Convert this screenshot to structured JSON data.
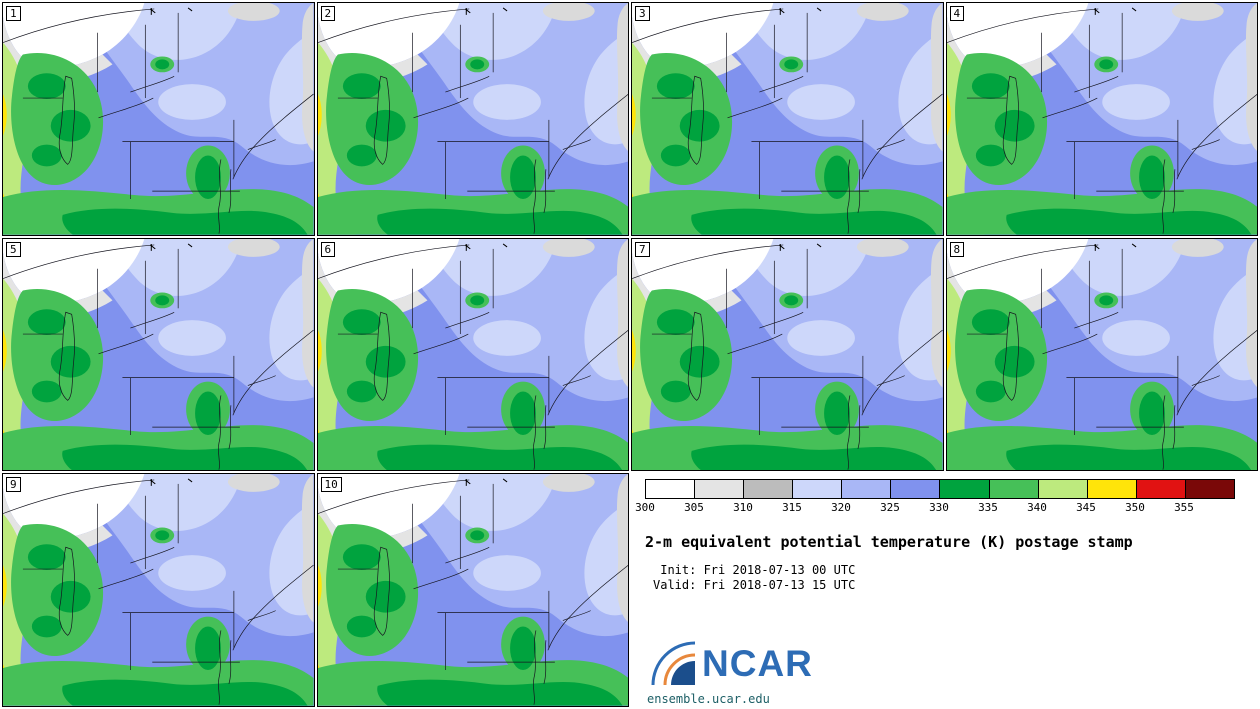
{
  "panels": [
    {
      "label": "1"
    },
    {
      "label": "2"
    },
    {
      "label": "3"
    },
    {
      "label": "4"
    },
    {
      "label": "5"
    },
    {
      "label": "6"
    },
    {
      "label": "7"
    },
    {
      "label": "8"
    },
    {
      "label": "9"
    },
    {
      "label": "10"
    }
  ],
  "colorbar": {
    "ticks": [
      "300",
      "305",
      "310",
      "315",
      "320",
      "325",
      "330",
      "335",
      "340",
      "345",
      "350",
      "355"
    ],
    "segment_colors": [
      "#ffffff",
      "#e4e4e4",
      "#bcbcbc",
      "#cdd7fa",
      "#a9b7f6",
      "#8092ee",
      "#00a33e",
      "#46c058",
      "#bdea7e",
      "#ffe40a",
      "#e11212",
      "#7a0808"
    ]
  },
  "info": {
    "title": "2-m equivalent potential temperature (K) postage stamp",
    "init_line": " Init: Fri 2018-07-13 00 UTC",
    "valid_line": "Valid: Fri 2018-07-13 15 UTC",
    "logo_text": "NCAR",
    "url": "ensemble.ucar.edu",
    "brand_blue": "#2d6cb5",
    "logo_navy": "#1b4e8c",
    "logo_orange": "#e8883c"
  }
}
